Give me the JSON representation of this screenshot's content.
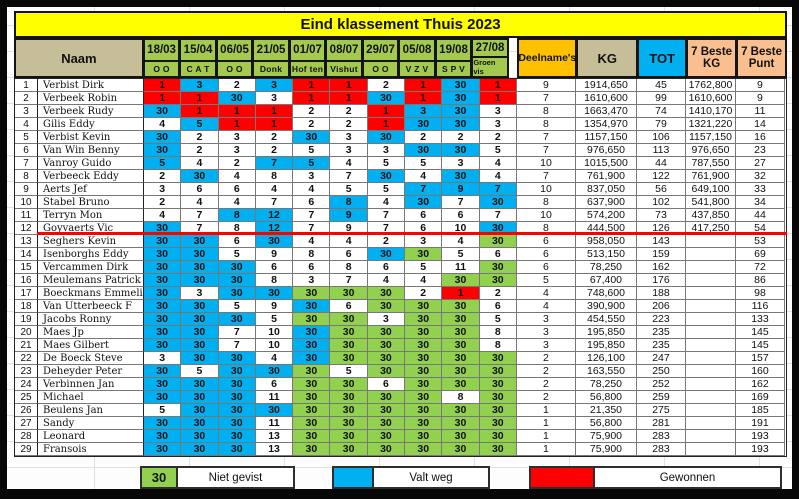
{
  "title": "Eind klassement Thuis 2023",
  "columns": {
    "naam": "Naam",
    "dates": [
      {
        "date": "18/03",
        "venue": "O O"
      },
      {
        "date": "15/04",
        "venue": "C A T"
      },
      {
        "date": "06/05",
        "venue": "O O"
      },
      {
        "date": "21/05",
        "venue": "Donk"
      },
      {
        "date": "01/07",
        "venue": "Hof ten"
      },
      {
        "date": "08/07",
        "venue": "Vishut"
      },
      {
        "date": "29/07",
        "venue": "O O"
      },
      {
        "date": "05/08",
        "venue": "V Z V"
      },
      {
        "date": "19/08",
        "venue": "S P V"
      },
      {
        "date": "27/08",
        "venue": "Groen vis"
      }
    ],
    "deelnames": "Deelname's",
    "kg": "KG",
    "tot": "TOT",
    "beste_kg_line1": "7 Beste",
    "beste_kg_line2": "KG",
    "beste_punt_line1": "7 Beste",
    "beste_punt_line2": "Punt"
  },
  "rows": [
    {
      "pos": 1,
      "name": "Verbist Dirk",
      "scores": [
        "1r",
        "3b",
        "2w",
        "3b",
        "1r",
        "1r",
        "2w",
        "1r",
        "30b",
        "1r"
      ],
      "deelnames": "9",
      "kg": "1914,650",
      "tot": "45",
      "beste_kg": "1762,800",
      "beste_punt": "9"
    },
    {
      "pos": 2,
      "name": "Verbeek Robin",
      "scores": [
        "1r",
        "1r",
        "30b",
        "3w",
        "1r",
        "1r",
        "30b",
        "1r",
        "30b",
        "1r"
      ],
      "deelnames": "7",
      "kg": "1610,600",
      "tot": "99",
      "beste_kg": "1610,600",
      "beste_punt": "9"
    },
    {
      "pos": 3,
      "name": "Verbeek Rudy",
      "scores": [
        "30b",
        "1r",
        "1r",
        "1r",
        "2w",
        "2w",
        "1r",
        "3b",
        "30b",
        "3w"
      ],
      "deelnames": "8",
      "kg": "1663,470",
      "tot": "74",
      "beste_kg": "1410,170",
      "beste_punt": "11"
    },
    {
      "pos": 4,
      "name": "Gilis Eddy",
      "scores": [
        "4w",
        "5b",
        "1r",
        "1r",
        "2w",
        "2w",
        "1r",
        "30b",
        "30b",
        "3w"
      ],
      "deelnames": "8",
      "kg": "1354,970",
      "tot": "79",
      "beste_kg": "1321,220",
      "beste_punt": "14"
    },
    {
      "pos": 5,
      "name": "Verbist Kevin",
      "scores": [
        "30b",
        "2w",
        "3w",
        "2w",
        "30b",
        "3w",
        "30b",
        "2w",
        "2w",
        "2w"
      ],
      "deelnames": "7",
      "kg": "1157,150",
      "tot": "106",
      "beste_kg": "1157,150",
      "beste_punt": "16"
    },
    {
      "pos": 6,
      "name": "Van Win Benny",
      "scores": [
        "30b",
        "2w",
        "3w",
        "2w",
        "5w",
        "3w",
        "3w",
        "30b",
        "30b",
        "5w"
      ],
      "deelnames": "7",
      "kg": "976,650",
      "tot": "113",
      "beste_kg": "976,650",
      "beste_punt": "23"
    },
    {
      "pos": 7,
      "name": "Vanroy Guido",
      "scores": [
        "5b",
        "4w",
        "2w",
        "7b",
        "5b",
        "4w",
        "5w",
        "5w",
        "3w",
        "4w"
      ],
      "deelnames": "10",
      "kg": "1015,500",
      "tot": "44",
      "beste_kg": "787,550",
      "beste_punt": "27"
    },
    {
      "pos": 8,
      "name": "Verbeeck Eddy",
      "scores": [
        "2w",
        "30b",
        "4w",
        "8w",
        "3w",
        "7w",
        "30b",
        "4w",
        "30b",
        "4w"
      ],
      "deelnames": "7",
      "kg": "761,900",
      "tot": "122",
      "beste_kg": "761,900",
      "beste_punt": "32"
    },
    {
      "pos": 9,
      "name": "Aerts Jef",
      "scores": [
        "3w",
        "6w",
        "6w",
        "4w",
        "4w",
        "5w",
        "5w",
        "7b",
        "9b",
        "7b"
      ],
      "deelnames": "10",
      "kg": "837,050",
      "tot": "56",
      "beste_kg": "649,100",
      "beste_punt": "33"
    },
    {
      "pos": 10,
      "name": "Stabel Bruno",
      "scores": [
        "2w",
        "4w",
        "4w",
        "7w",
        "6w",
        "8b",
        "4w",
        "30b",
        "7w",
        "30b"
      ],
      "deelnames": "8",
      "kg": "637,900",
      "tot": "102",
      "beste_kg": "541,800",
      "beste_punt": "34"
    },
    {
      "pos": 11,
      "name": "Terryn Mon",
      "scores": [
        "4w",
        "7w",
        "8b",
        "12b",
        "7w",
        "9b",
        "7w",
        "6w",
        "6w",
        "7w"
      ],
      "deelnames": "10",
      "kg": "574,200",
      "tot": "73",
      "beste_kg": "437,850",
      "beste_punt": "44"
    },
    {
      "pos": 12,
      "name": "Goyvaerts Vic",
      "scores": [
        "30b",
        "7w",
        "8w",
        "12b",
        "7w",
        "9w",
        "7w",
        "6w",
        "10w",
        "30b"
      ],
      "deelnames": "8",
      "kg": "444,500",
      "tot": "126",
      "beste_kg": "417,250",
      "beste_punt": "54"
    },
    {
      "pos": 13,
      "name": "Seghers Kevin",
      "scores": [
        "30b",
        "30b",
        "6w",
        "30b",
        "4w",
        "4w",
        "2w",
        "3w",
        "4w",
        "30g"
      ],
      "deelnames": "6",
      "kg": "958,050",
      "tot": "143",
      "beste_kg": "",
      "beste_punt": "53"
    },
    {
      "pos": 14,
      "name": "Isenborghs Eddy",
      "scores": [
        "30b",
        "30b",
        "5w",
        "9w",
        "8w",
        "6w",
        "30b",
        "30g",
        "5w",
        "6w"
      ],
      "deelnames": "6",
      "kg": "513,150",
      "tot": "159",
      "beste_kg": "",
      "beste_punt": "69"
    },
    {
      "pos": 15,
      "name": "Vercammen Dirk",
      "scores": [
        "30b",
        "30b",
        "30b",
        "6w",
        "6w",
        "8w",
        "6w",
        "5w",
        "11w",
        "30g"
      ],
      "deelnames": "6",
      "kg": "78,250",
      "tot": "162",
      "beste_kg": "",
      "beste_punt": "72"
    },
    {
      "pos": 16,
      "name": "Meulemans Patrick",
      "scores": [
        "30b",
        "30b",
        "30b",
        "8w",
        "3w",
        "7w",
        "4w",
        "4w",
        "30g",
        "30g"
      ],
      "deelnames": "5",
      "kg": "67,400",
      "tot": "176",
      "beste_kg": "",
      "beste_punt": "86"
    },
    {
      "pos": 17,
      "name": "Boeckmans Emmelie",
      "scores": [
        "30b",
        "3w",
        "30b",
        "30b",
        "30g",
        "30g",
        "30g",
        "2w",
        "1r",
        "2w"
      ],
      "deelnames": "4",
      "kg": "748,600",
      "tot": "188",
      "beste_kg": "",
      "beste_punt": "98"
    },
    {
      "pos": 18,
      "name": "Van Utterbeeck F",
      "scores": [
        "30b",
        "30b",
        "5w",
        "9w",
        "30b",
        "6w",
        "30g",
        "30g",
        "30g",
        "6w"
      ],
      "deelnames": "4",
      "kg": "390,900",
      "tot": "206",
      "beste_kg": "",
      "beste_punt": "116"
    },
    {
      "pos": 19,
      "name": "Jacobs Ronny",
      "scores": [
        "30b",
        "30b",
        "30b",
        "5w",
        "30g",
        "30g",
        "3w",
        "30g",
        "30g",
        "5w"
      ],
      "deelnames": "3",
      "kg": "454,550",
      "tot": "223",
      "beste_kg": "",
      "beste_punt": "133"
    },
    {
      "pos": 20,
      "name": "Maes Jp",
      "scores": [
        "30b",
        "30b",
        "7w",
        "10w",
        "30b",
        "30g",
        "30g",
        "30g",
        "30g",
        "8w"
      ],
      "deelnames": "3",
      "kg": "195,850",
      "tot": "235",
      "beste_kg": "",
      "beste_punt": "145"
    },
    {
      "pos": 21,
      "name": "Maes Gilbert",
      "scores": [
        "30b",
        "30b",
        "7w",
        "10w",
        "30b",
        "30g",
        "30g",
        "30g",
        "30g",
        "8w"
      ],
      "deelnames": "3",
      "kg": "195,850",
      "tot": "235",
      "beste_kg": "",
      "beste_punt": "145"
    },
    {
      "pos": 22,
      "name": "De Boeck Steve",
      "scores": [
        "3w",
        "30b",
        "30b",
        "4w",
        "30b",
        "30g",
        "30g",
        "30g",
        "30g",
        "30g"
      ],
      "deelnames": "2",
      "kg": "126,100",
      "tot": "247",
      "beste_kg": "",
      "beste_punt": "157"
    },
    {
      "pos": 23,
      "name": "Deheyder Peter",
      "scores": [
        "30b",
        "5w",
        "30b",
        "30b",
        "30g",
        "5w",
        "30g",
        "30g",
        "30g",
        "30g"
      ],
      "deelnames": "2",
      "kg": "163,550",
      "tot": "250",
      "beste_kg": "",
      "beste_punt": "160"
    },
    {
      "pos": 24,
      "name": "Verbinnen Jan",
      "scores": [
        "30b",
        "30b",
        "30b",
        "6w",
        "30g",
        "30g",
        "6w",
        "30g",
        "30g",
        "30g"
      ],
      "deelnames": "2",
      "kg": "78,250",
      "tot": "252",
      "beste_kg": "",
      "beste_punt": "162"
    },
    {
      "pos": 25,
      "name": "Michael",
      "scores": [
        "30b",
        "30b",
        "30b",
        "11w",
        "30g",
        "30g",
        "30g",
        "30g",
        "8w",
        "30g"
      ],
      "deelnames": "2",
      "kg": "56,800",
      "tot": "259",
      "beste_kg": "",
      "beste_punt": "169"
    },
    {
      "pos": 26,
      "name": "Beulens Jan",
      "scores": [
        "5w",
        "30b",
        "30b",
        "30b",
        "30g",
        "30g",
        "30g",
        "30g",
        "30g",
        "30g"
      ],
      "deelnames": "1",
      "kg": "21,350",
      "tot": "275",
      "beste_kg": "",
      "beste_punt": "185"
    },
    {
      "pos": 27,
      "name": "Sandy",
      "scores": [
        "30b",
        "30b",
        "30b",
        "11w",
        "30g",
        "30g",
        "30g",
        "30g",
        "30g",
        "30g"
      ],
      "deelnames": "1",
      "kg": "56,800",
      "tot": "281",
      "beste_kg": "",
      "beste_punt": "191"
    },
    {
      "pos": 28,
      "name": "Leonard",
      "scores": [
        "30b",
        "30b",
        "30b",
        "13w",
        "30g",
        "30g",
        "30g",
        "30g",
        "30g",
        "30g"
      ],
      "deelnames": "1",
      "kg": "75,900",
      "tot": "283",
      "beste_kg": "",
      "beste_punt": "193"
    },
    {
      "pos": 29,
      "name": "Fransois",
      "scores": [
        "30b",
        "30b",
        "30b",
        "13w",
        "30g",
        "30g",
        "30g",
        "30g",
        "30g",
        "30g"
      ],
      "deelnames": "1",
      "kg": "75,900",
      "tot": "283",
      "beste_kg": "",
      "beste_punt": "193"
    }
  ],
  "legend": [
    {
      "swatch_text": "30",
      "label": "Niet gevist",
      "color_key": "notfished_green"
    },
    {
      "swatch_text": "",
      "label": "Valt weg",
      "color_key": "drop_cyan"
    },
    {
      "swatch_text": "",
      "label": "Gewonnen",
      "color_key": "won_red"
    }
  ],
  "colors": {
    "title_yellow": "#FFFF00",
    "header_green": "#A3C94E",
    "tan": "#C5BE98",
    "orange": "#FFC000",
    "peach": "#FABF8F",
    "tot_cyan": "#00B0F0",
    "won_red": "#FF0000",
    "drop_cyan": "#00B0F0",
    "notfished_green": "#92D050",
    "separator_red": "#FF0000"
  }
}
